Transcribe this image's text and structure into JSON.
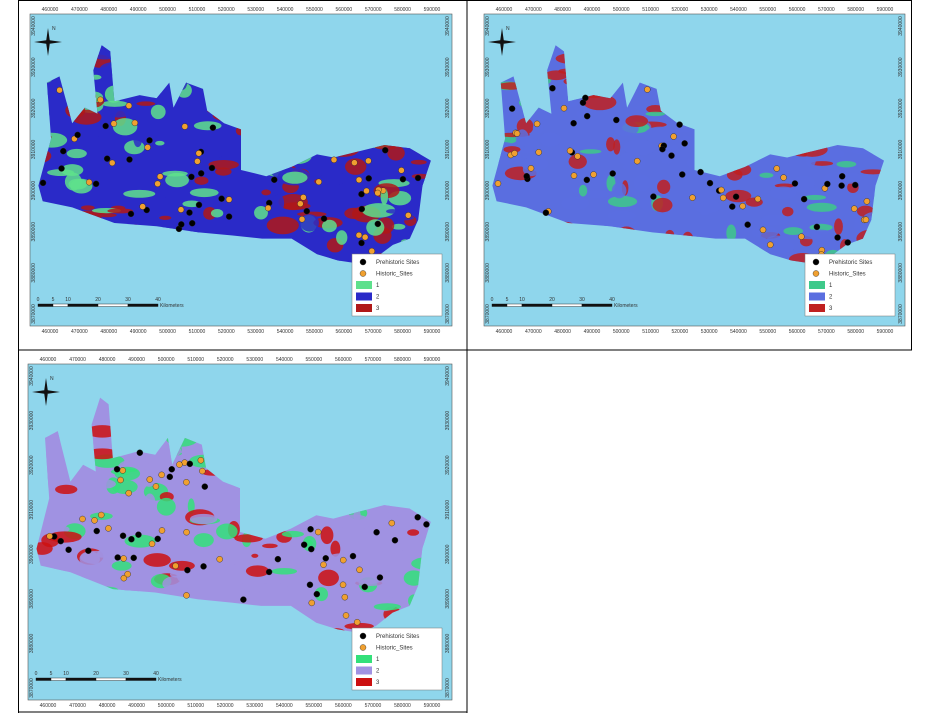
{
  "x_ticks": [
    460000,
    470000,
    480000,
    490000,
    500000,
    510000,
    520000,
    530000,
    540000,
    550000,
    560000,
    570000,
    580000,
    590000
  ],
  "y_ticks": [
    3940000,
    3930000,
    3920000,
    3910000,
    3900000,
    3890000,
    3880000,
    3870000
  ],
  "north": "N",
  "scale_labels": [
    "0",
    "5",
    "10",
    "20",
    "30",
    "40"
  ],
  "scale_unit": "Kilometers",
  "maps": [
    {
      "legend": [
        {
          "label": "Prehistoric Sites",
          "color": "#000000"
        },
        {
          "label": "Historic_Sites",
          "color": "#f0a030"
        },
        {
          "label": "1",
          "color": "#5ee08c"
        },
        {
          "label": "2",
          "color": "#2a2ac8"
        },
        {
          "label": "3",
          "color": "#b01818"
        }
      ]
    },
    {
      "legend": [
        {
          "label": "Prehistoric Sites",
          "color": "#000000"
        },
        {
          "label": "Historic_Sites",
          "color": "#f0a030"
        },
        {
          "label": "1",
          "color": "#3ec98a"
        },
        {
          "label": "2",
          "color": "#5a6ee0"
        },
        {
          "label": "3",
          "color": "#c02020"
        }
      ]
    },
    {
      "legend": [
        {
          "label": "Prehistoric Sites",
          "color": "#000000"
        },
        {
          "label": "Historic_Sites",
          "color": "#f0a030"
        },
        {
          "label": "1",
          "color": "#33e07a"
        },
        {
          "label": "2",
          "color": "#a092e2"
        },
        {
          "label": "3",
          "color": "#cc1010"
        }
      ]
    }
  ]
}
